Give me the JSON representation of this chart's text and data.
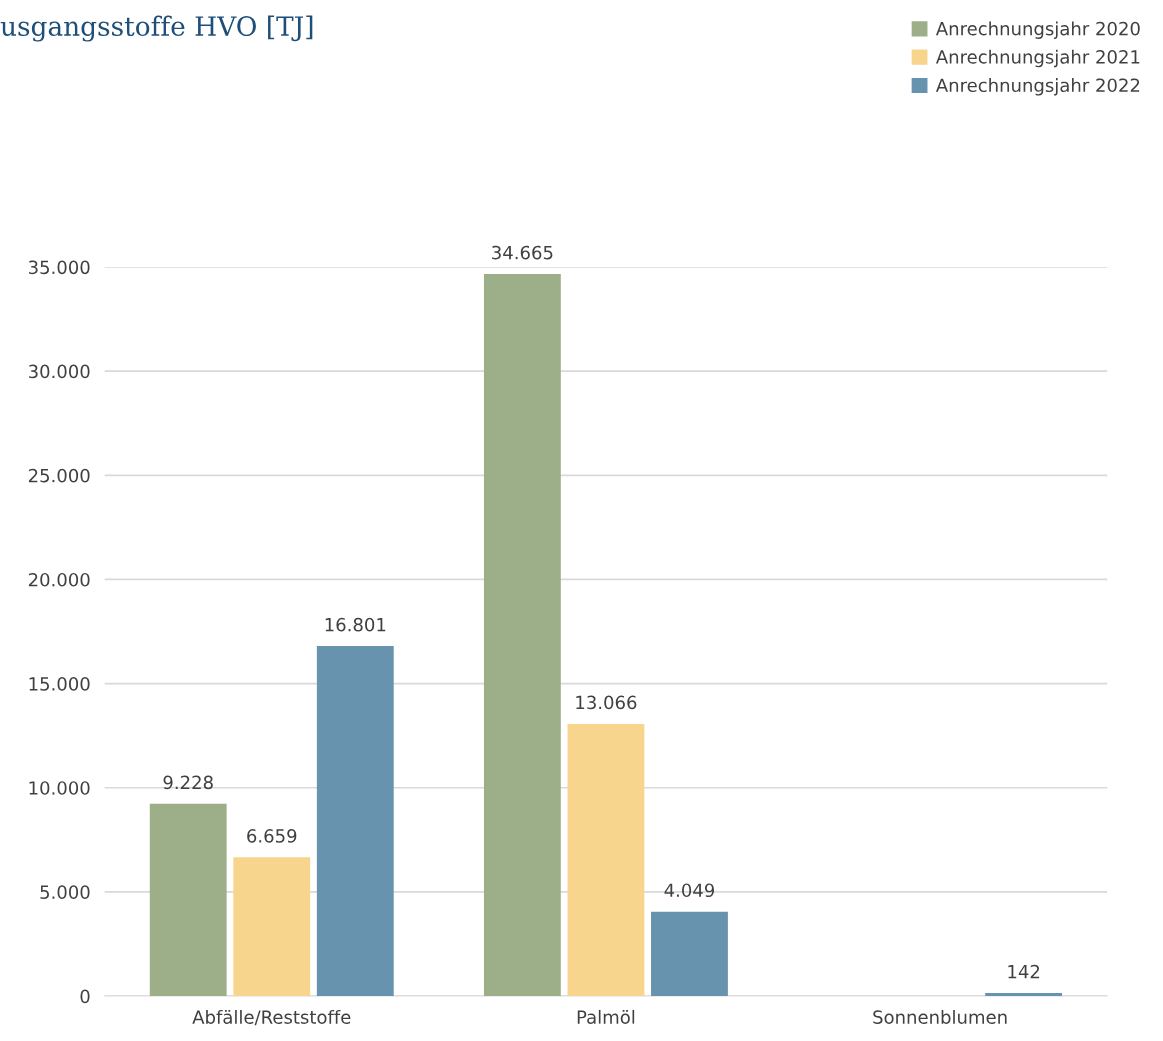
{
  "chart_data": {
    "type": "bar",
    "title": "usgangsstoffe HVO [TJ]",
    "categories": [
      "Abfälle/Reststoffe",
      "Palmöl",
      "Sonnenblumen"
    ],
    "series": [
      {
        "name": "Anrechnungsjahr 2020",
        "color": "#9caf88",
        "values": [
          9228,
          34665,
          null
        ],
        "value_labels": [
          "9.228",
          "34.665",
          null
        ]
      },
      {
        "name": "Anrechnungsjahr 2021",
        "color": "#f8d58c",
        "values": [
          6659,
          13066,
          null
        ],
        "value_labels": [
          "6.659",
          "13.066",
          null
        ]
      },
      {
        "name": "Anrechnungsjahr 2022",
        "color": "#6793ae",
        "values": [
          16801,
          4049,
          142
        ],
        "value_labels": [
          "16.801",
          "4.049",
          "142"
        ]
      }
    ],
    "ylim": [
      0,
      35000
    ],
    "yticks": [
      {
        "value": 0,
        "label": "0"
      },
      {
        "value": 5000,
        "label": "5.000"
      },
      {
        "value": 10000,
        "label": "10.000"
      },
      {
        "value": 15000,
        "label": "15.000"
      },
      {
        "value": 20000,
        "label": "20.000"
      },
      {
        "value": 25000,
        "label": "25.000"
      },
      {
        "value": 30000,
        "label": "30.000"
      },
      {
        "value": 35000,
        "label": "35.000"
      }
    ],
    "grid": "y",
    "legend": "top right"
  }
}
